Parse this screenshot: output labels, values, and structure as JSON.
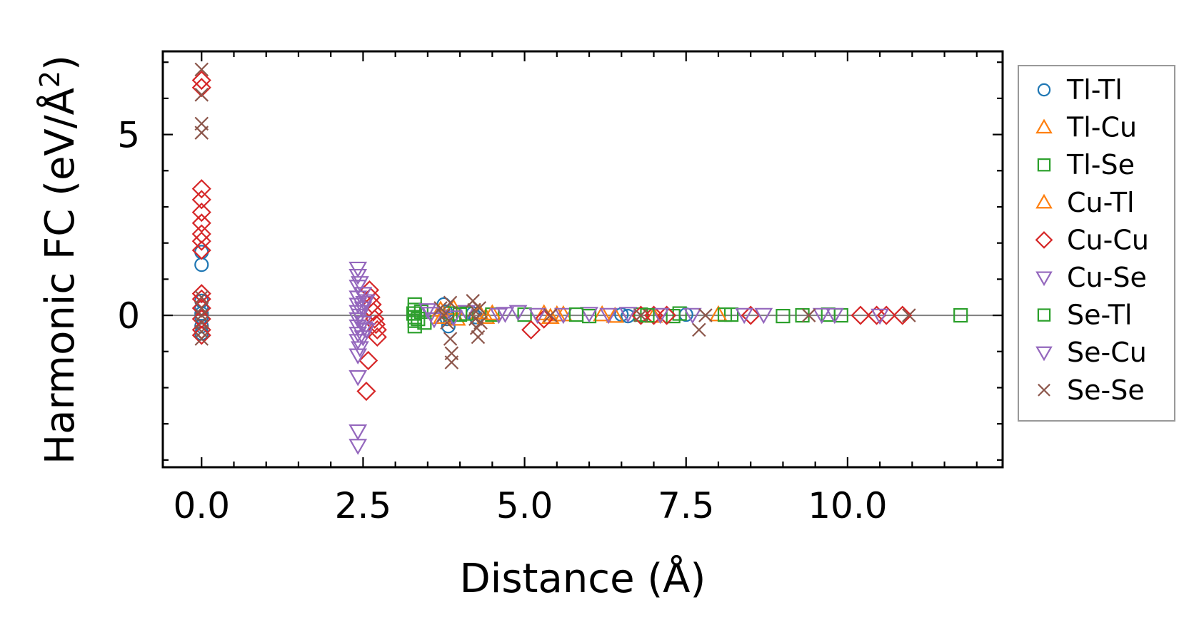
{
  "chart_data": {
    "type": "scatter",
    "xlabel": "Distance (Å)",
    "ylabel_main": "Harmonic FC (eV/Å",
    "ylabel_sup": "2",
    "ylabel_close": ")",
    "xlim": [
      -0.6,
      12.4
    ],
    "ylim": [
      -4.2,
      7.3
    ],
    "xticks": [
      0.0,
      2.5,
      5.0,
      7.5,
      10.0
    ],
    "xtick_labels": [
      "0.0",
      "2.5",
      "5.0",
      "7.5",
      "10.0"
    ],
    "yticks": [
      0,
      5
    ],
    "ytick_labels": [
      "0",
      "5"
    ],
    "grid": false,
    "zero_line": true,
    "legend_position": "outside-right",
    "series": [
      {
        "name": "Tl-Tl",
        "marker": "circle",
        "color": "#1f77b4",
        "points": [
          [
            0,
            1.75
          ],
          [
            0,
            1.4
          ],
          [
            0,
            0.4
          ],
          [
            0,
            0.2
          ],
          [
            0,
            0.05
          ],
          [
            0,
            -0.05
          ],
          [
            0,
            -0.3
          ],
          [
            0,
            -0.5
          ],
          [
            3.75,
            0.3
          ],
          [
            3.78,
            0.1
          ],
          [
            3.8,
            -0.1
          ],
          [
            3.82,
            -0.3
          ],
          [
            4.2,
            0.05
          ],
          [
            4.25,
            -0.05
          ],
          [
            6.5,
            0.02
          ],
          [
            6.6,
            -0.02
          ],
          [
            7.5,
            0.02
          ]
        ]
      },
      {
        "name": "Tl-Cu",
        "marker": "triangle-up",
        "color": "#ff7f0e",
        "points": [
          [
            3.9,
            0.2
          ],
          [
            3.95,
            -0.1
          ],
          [
            4.3,
            0.08
          ],
          [
            4.4,
            -0.05
          ],
          [
            5.3,
            0.05
          ],
          [
            5.4,
            -0.05
          ],
          [
            5.5,
            0.02
          ],
          [
            6.2,
            0.02
          ],
          [
            7.0,
            -0.02
          ]
        ]
      },
      {
        "name": "Tl-Se",
        "marker": "square",
        "color": "#2ca02c",
        "points": [
          [
            3.3,
            0.3
          ],
          [
            3.3,
            0.15
          ],
          [
            3.3,
            -0.05
          ],
          [
            3.3,
            -0.15
          ],
          [
            3.3,
            -0.3
          ],
          [
            3.4,
            0.1
          ],
          [
            3.45,
            -0.2
          ],
          [
            3.85,
            0.05
          ],
          [
            4.1,
            0.05
          ],
          [
            4.5,
            0.02
          ],
          [
            5.0,
            0.02
          ],
          [
            6.0,
            -0.02
          ],
          [
            6.8,
            0.02
          ],
          [
            7.3,
            -0.02
          ],
          [
            7.4,
            0.05
          ],
          [
            8.2,
            0.02
          ],
          [
            9.0,
            -0.02
          ],
          [
            9.7,
            0.02
          ],
          [
            9.9,
            0
          ],
          [
            11.75,
            0
          ]
        ]
      },
      {
        "name": "Cu-Tl",
        "marker": "triangle-up",
        "color": "#ff7f0e",
        "points": [
          [
            3.7,
            0.15
          ],
          [
            3.72,
            -0.05
          ],
          [
            4.5,
            0.05
          ],
          [
            5.6,
            0.02
          ],
          [
            6.4,
            -0.02
          ],
          [
            8.0,
            0.02
          ]
        ]
      },
      {
        "name": "Cu-Cu",
        "marker": "diamond",
        "color": "#d62728",
        "points": [
          [
            0,
            6.5
          ],
          [
            0,
            6.3
          ],
          [
            0,
            3.5
          ],
          [
            0,
            3.2
          ],
          [
            0,
            2.85
          ],
          [
            0,
            2.55
          ],
          [
            0,
            2.25
          ],
          [
            0,
            2.05
          ],
          [
            0,
            1.8
          ],
          [
            0,
            0.6
          ],
          [
            0,
            0.45
          ],
          [
            0,
            0.2
          ],
          [
            0,
            -0.1
          ],
          [
            0,
            -0.4
          ],
          [
            0,
            -0.55
          ],
          [
            2.62,
            0.5
          ],
          [
            2.64,
            0.3
          ],
          [
            2.66,
            0.1
          ],
          [
            2.68,
            -0.1
          ],
          [
            2.7,
            -0.25
          ],
          [
            2.72,
            -0.4
          ],
          [
            2.72,
            -0.6
          ],
          [
            2.6,
            0.7
          ],
          [
            2.58,
            -1.25
          ],
          [
            2.55,
            -2.1
          ],
          [
            5.1,
            -0.4
          ],
          [
            5.3,
            -0.1
          ],
          [
            6.8,
            0
          ],
          [
            7.0,
            0
          ],
          [
            7.2,
            0
          ],
          [
            8.5,
            0
          ],
          [
            10.2,
            0
          ],
          [
            10.45,
            0
          ],
          [
            10.6,
            0
          ],
          [
            10.85,
            0
          ]
        ]
      },
      {
        "name": "Cu-Se",
        "marker": "triangle-down",
        "color": "#9467bd",
        "points": [
          [
            2.42,
            1.3
          ],
          [
            2.42,
            1.1
          ],
          [
            2.42,
            0.8
          ],
          [
            2.42,
            0.5
          ],
          [
            2.42,
            0.3
          ],
          [
            2.42,
            0.1
          ],
          [
            2.42,
            -0.1
          ],
          [
            2.42,
            -0.3
          ],
          [
            2.42,
            -0.5
          ],
          [
            2.42,
            -0.7
          ],
          [
            2.42,
            -1.1
          ],
          [
            2.42,
            -1.7
          ],
          [
            2.42,
            -3.2
          ],
          [
            2.42,
            -3.6
          ],
          [
            2.5,
            0.6
          ],
          [
            2.5,
            0.2
          ],
          [
            2.5,
            -0.2
          ],
          [
            2.5,
            -0.6
          ],
          [
            2.55,
            0.4
          ],
          [
            2.55,
            -0.4
          ],
          [
            3.5,
            0.15
          ],
          [
            3.6,
            -0.1
          ],
          [
            4.1,
            0.1
          ],
          [
            4.7,
            0.05
          ],
          [
            4.9,
            0.1
          ],
          [
            5.6,
            0.02
          ],
          [
            6.0,
            0.05
          ],
          [
            6.6,
            0.05
          ],
          [
            7.1,
            0.02
          ],
          [
            8.7,
            0.02
          ],
          [
            9.6,
            0.02
          ]
        ]
      },
      {
        "name": "Se-Tl",
        "marker": "square",
        "color": "#2ca02c",
        "points": [
          [
            3.28,
            0.05
          ],
          [
            3.35,
            -0.1
          ],
          [
            4.0,
            0.02
          ],
          [
            5.8,
            0.02
          ],
          [
            6.9,
            0
          ],
          [
            8.1,
            0.02
          ],
          [
            9.3,
            0
          ]
        ]
      },
      {
        "name": "Se-Cu",
        "marker": "triangle-down",
        "color": "#9467bd",
        "points": [
          [
            2.45,
            0.9
          ],
          [
            2.45,
            0.0
          ],
          [
            2.45,
            -0.9
          ],
          [
            2.52,
            0.35
          ],
          [
            2.52,
            -0.35
          ],
          [
            3.55,
            0.05
          ],
          [
            3.9,
            -0.05
          ],
          [
            4.6,
            0.02
          ],
          [
            5.2,
            0.02
          ],
          [
            6.3,
            0.02
          ],
          [
            7.6,
            0.02
          ],
          [
            8.4,
            0.02
          ],
          [
            9.8,
            0.02
          ],
          [
            10.5,
            0
          ]
        ]
      },
      {
        "name": "Se-Se",
        "marker": "x",
        "color": "#8c564b",
        "points": [
          [
            0,
            6.8
          ],
          [
            0,
            6.1
          ],
          [
            0,
            5.3
          ],
          [
            0,
            5.05
          ],
          [
            0,
            0.5
          ],
          [
            0,
            0.2
          ],
          [
            0,
            0
          ],
          [
            0,
            -0.2
          ],
          [
            0,
            -0.45
          ],
          [
            0,
            -0.65
          ],
          [
            3.7,
            0.2
          ],
          [
            3.75,
            0
          ],
          [
            3.8,
            -0.2
          ],
          [
            3.85,
            0.35
          ],
          [
            3.85,
            -0.65
          ],
          [
            3.87,
            -1.05
          ],
          [
            3.87,
            -1.3
          ],
          [
            4.2,
            0.4
          ],
          [
            4.22,
            0.15
          ],
          [
            4.24,
            -0.1
          ],
          [
            4.26,
            -0.35
          ],
          [
            4.28,
            -0.6
          ],
          [
            4.3,
            0.2
          ],
          [
            4.32,
            -0.2
          ],
          [
            5.4,
            0
          ],
          [
            6.8,
            0
          ],
          [
            7.7,
            -0.4
          ],
          [
            7.8,
            0
          ],
          [
            9.4,
            0
          ],
          [
            10.95,
            0
          ]
        ]
      }
    ]
  }
}
